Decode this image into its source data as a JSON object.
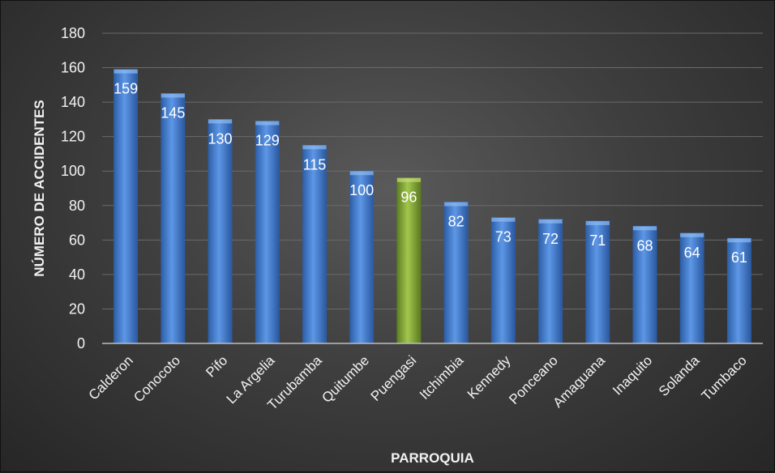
{
  "chart_data": {
    "type": "bar",
    "title": "",
    "xlabel": "PARROQUIA",
    "ylabel": "NÚMERO DE ACCIDENTES",
    "ylim": [
      0,
      180
    ],
    "yticks": [
      0,
      20,
      40,
      60,
      80,
      100,
      120,
      140,
      160,
      180
    ],
    "grid": true,
    "legend": "none",
    "categories": [
      "Calderon",
      "Conocoto",
      "Pifo",
      "La Argelia",
      "Turubamba",
      "Quitumbe",
      "Puengasi",
      "Itchimbia",
      "Kennedy",
      "Ponceano",
      "Amaguana",
      "Inaquito",
      "Solanda",
      "Tumbaco"
    ],
    "values": [
      159,
      145,
      130,
      129,
      115,
      100,
      96,
      82,
      73,
      72,
      71,
      68,
      64,
      61
    ],
    "highlight_category": "Puengasi"
  },
  "colors": {
    "bar": "#4a86d6",
    "bar_dark": "#2d5fa8",
    "highlight": "#8cb43a",
    "highlight_dark": "#5f7f22",
    "grid": "#6a6a6a",
    "axis": "#bdbdbd",
    "text": "#f2f2f2"
  }
}
